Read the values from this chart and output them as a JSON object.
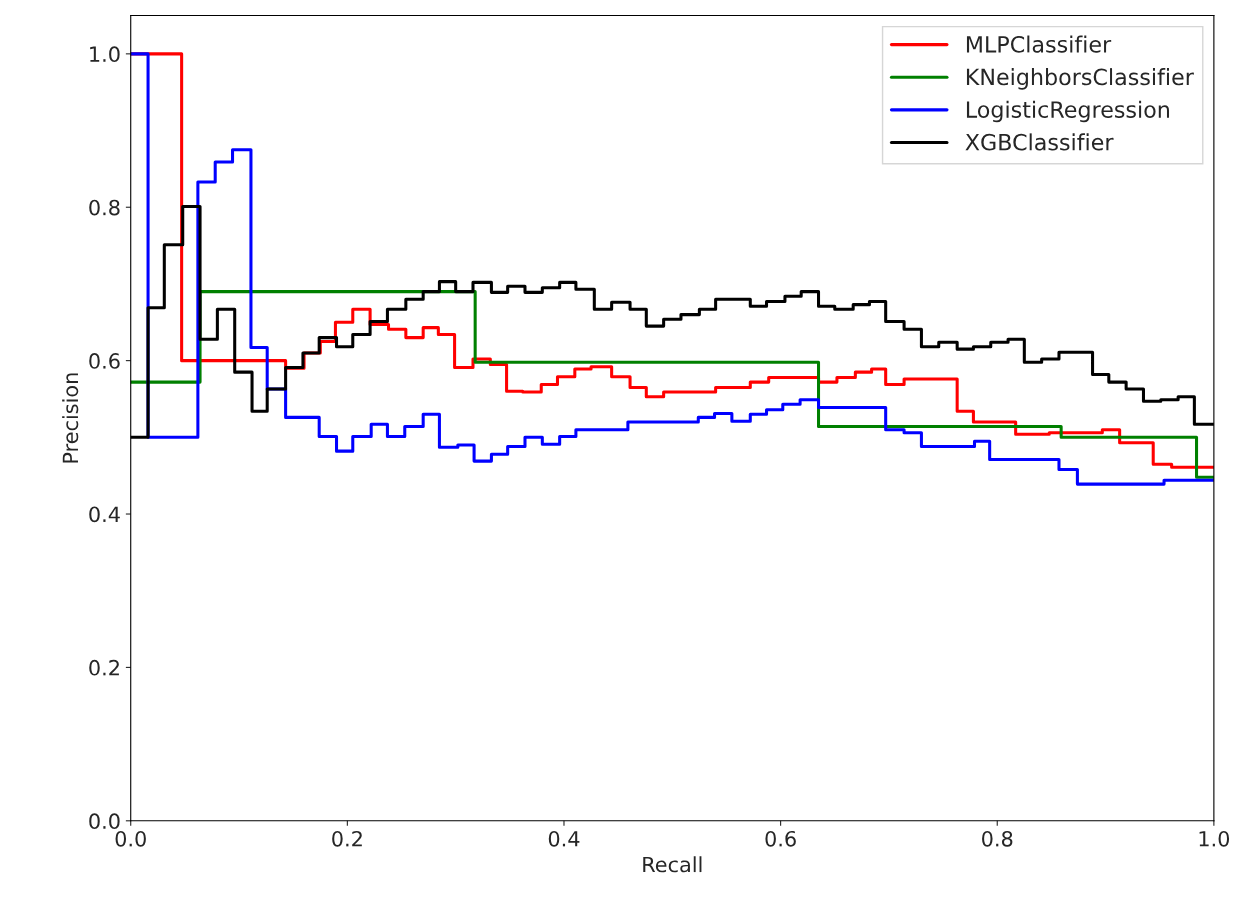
{
  "chart_data": {
    "type": "step",
    "xlabel": "Recall",
    "ylabel": "Precision",
    "xlim": [
      0,
      1
    ],
    "ylim": [
      0,
      1.05
    ],
    "xticks": [
      {
        "value": 0,
        "label": "0.0"
      },
      0.2,
      0.4,
      0.6,
      0.8,
      {
        "value": 1,
        "label": "1.0"
      }
    ],
    "yticks": [
      {
        "value": 0,
        "label": "0.0"
      },
      0.2,
      0.4,
      0.6,
      0.8,
      {
        "value": 1,
        "label": "1.0"
      }
    ],
    "grid": false,
    "legend": "top right",
    "series": [
      {
        "name": "MLPClassifier",
        "color": "#ff0000",
        "x": [
          0,
          0.047,
          0.128,
          0.143,
          0.16,
          0.175,
          0.189,
          0.205,
          0.221,
          0.238,
          0.254,
          0.27,
          0.284,
          0.299,
          0.316,
          0.332,
          0.347,
          0.362,
          0.379,
          0.394,
          0.41,
          0.425,
          0.444,
          0.461,
          0.476,
          0.492,
          0.54,
          0.572,
          0.589,
          0.635,
          0.652,
          0.669,
          0.684,
          0.697,
          0.714,
          0.763,
          0.778,
          0.817,
          0.848,
          0.897,
          0.913,
          0.944,
          0.961,
          1.0
        ],
        "values": [
          1.0,
          0.6,
          0.6,
          0.59,
          0.61,
          0.625,
          0.65,
          0.667,
          0.647,
          0.641,
          0.63,
          0.643,
          0.634,
          0.591,
          0.602,
          0.595,
          0.56,
          0.559,
          0.569,
          0.579,
          0.589,
          0.592,
          0.579,
          0.565,
          0.553,
          0.559,
          0.565,
          0.572,
          0.578,
          0.572,
          0.578,
          0.585,
          0.589,
          0.569,
          0.576,
          0.534,
          0.52,
          0.504,
          0.506,
          0.51,
          0.493,
          0.465,
          0.461,
          0.461
        ]
      },
      {
        "name": "KNeighborsClassifier",
        "color": "#008000",
        "x": [
          0,
          0.064,
          0.318,
          0.635,
          0.859,
          0.984,
          1.0
        ],
        "values": [
          0.572,
          0.69,
          0.598,
          0.514,
          0.5,
          0.448,
          0.448
        ]
      },
      {
        "name": "LogisticRegression",
        "color": "#0000ff",
        "x": [
          0,
          0.016,
          0.062,
          0.078,
          0.094,
          0.111,
          0.126,
          0.143,
          0.174,
          0.19,
          0.205,
          0.222,
          0.237,
          0.253,
          0.27,
          0.285,
          0.302,
          0.317,
          0.333,
          0.348,
          0.364,
          0.38,
          0.396,
          0.411,
          0.459,
          0.524,
          0.539,
          0.555,
          0.572,
          0.587,
          0.602,
          0.618,
          0.635,
          0.697,
          0.714,
          0.73,
          0.779,
          0.793,
          0.857,
          0.874,
          0.954,
          1.0
        ],
        "values": [
          1.0,
          0.5,
          0.833,
          0.859,
          0.875,
          0.617,
          0.563,
          0.526,
          0.501,
          0.482,
          0.501,
          0.517,
          0.501,
          0.514,
          0.53,
          0.487,
          0.49,
          0.469,
          0.478,
          0.488,
          0.5,
          0.491,
          0.501,
          0.51,
          0.52,
          0.526,
          0.531,
          0.521,
          0.53,
          0.536,
          0.543,
          0.549,
          0.539,
          0.51,
          0.506,
          0.488,
          0.495,
          0.471,
          0.458,
          0.439,
          0.444,
          0.444
        ]
      },
      {
        "name": "XGBClassifier",
        "color": "#000000",
        "x": [
          0,
          0.016,
          0.031,
          0.048,
          0.064,
          0.08,
          0.096,
          0.112,
          0.126,
          0.143,
          0.159,
          0.174,
          0.19,
          0.205,
          0.221,
          0.237,
          0.254,
          0.27,
          0.285,
          0.3,
          0.316,
          0.333,
          0.348,
          0.364,
          0.38,
          0.396,
          0.411,
          0.428,
          0.444,
          0.461,
          0.476,
          0.492,
          0.508,
          0.525,
          0.54,
          0.572,
          0.587,
          0.604,
          0.619,
          0.635,
          0.65,
          0.667,
          0.682,
          0.697,
          0.714,
          0.73,
          0.746,
          0.763,
          0.778,
          0.794,
          0.81,
          0.825,
          0.841,
          0.857,
          0.888,
          0.903,
          0.919,
          0.935,
          0.951,
          0.967,
          0.982,
          1.0
        ],
        "values": [
          0.5,
          0.669,
          0.751,
          0.801,
          0.628,
          0.667,
          0.585,
          0.534,
          0.563,
          0.591,
          0.61,
          0.63,
          0.618,
          0.634,
          0.651,
          0.667,
          0.68,
          0.69,
          0.703,
          0.69,
          0.702,
          0.689,
          0.697,
          0.689,
          0.695,
          0.702,
          0.693,
          0.667,
          0.676,
          0.667,
          0.645,
          0.654,
          0.66,
          0.667,
          0.68,
          0.671,
          0.677,
          0.684,
          0.69,
          0.671,
          0.667,
          0.673,
          0.677,
          0.651,
          0.641,
          0.618,
          0.624,
          0.615,
          0.618,
          0.624,
          0.628,
          0.598,
          0.602,
          0.611,
          0.582,
          0.572,
          0.563,
          0.547,
          0.549,
          0.553,
          0.517,
          0.517
        ]
      }
    ]
  }
}
